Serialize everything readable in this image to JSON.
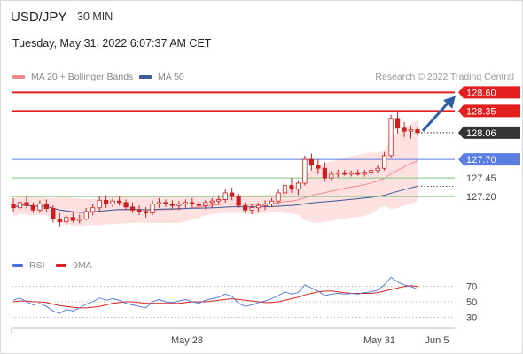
{
  "header": {
    "symbol": "USD/JPY",
    "timeframe": "30 MIN",
    "datetime": "Tuesday, May 31, 2022 6:07:37 AM CET",
    "copyright": "Research © 2022 Trading Central"
  },
  "legend": {
    "ma20_label": "MA 20 + Bollinger Bands",
    "ma50_label": "MA 50",
    "rsi_label": "RSI",
    "rsi_ma_label": "9MA"
  },
  "colors": {
    "resistance": "#e31e1e",
    "support": "#5b7fe0",
    "support_light": "#7cc57c",
    "ma20": "#f08a8a",
    "bollinger_fill": "#fde0e0",
    "ma50": "#3b5b9a",
    "candle": "#cc1f1f",
    "current_price_bg": "#333333",
    "arrow": "#2f5ea8",
    "rsi": "#4b72d6",
    "rsi_ma": "#d92323"
  },
  "chart_data": [
    {
      "type": "candlestick",
      "title": "USD/JPY 30 MIN",
      "y_range": [
        126.5,
        128.7
      ],
      "x_tick_labels": [
        "May 28",
        "May 31",
        "Jun 5"
      ],
      "current_price": 128.06,
      "levels": [
        {
          "value": 128.6,
          "label": "128.60",
          "kind": "resistance"
        },
        {
          "value": 128.35,
          "label": "128.35",
          "kind": "resistance"
        },
        {
          "value": 127.7,
          "label": "127.70",
          "kind": "pivot"
        },
        {
          "value": 127.45,
          "label": "127.45",
          "kind": "support"
        },
        {
          "value": 127.2,
          "label": "127.20",
          "kind": "support"
        }
      ],
      "ohlc": [
        [
          127.1,
          127.18,
          127.0,
          127.05
        ],
        [
          127.05,
          127.15,
          127.02,
          127.12
        ],
        [
          127.12,
          127.2,
          127.04,
          127.08
        ],
        [
          127.08,
          127.12,
          126.98,
          127.02
        ],
        [
          127.02,
          127.15,
          126.98,
          127.1
        ],
        [
          127.1,
          127.16,
          127.0,
          127.04
        ],
        [
          127.04,
          127.08,
          126.85,
          126.9
        ],
        [
          126.9,
          126.98,
          126.8,
          126.86
        ],
        [
          126.86,
          126.95,
          126.82,
          126.92
        ],
        [
          126.92,
          127.0,
          126.85,
          126.88
        ],
        [
          126.88,
          126.96,
          126.84,
          126.9
        ],
        [
          126.9,
          127.05,
          126.88,
          127.0
        ],
        [
          127.0,
          127.1,
          126.95,
          127.05
        ],
        [
          127.05,
          127.2,
          127.0,
          127.15
        ],
        [
          127.15,
          127.22,
          127.05,
          127.1
        ],
        [
          127.1,
          127.18,
          127.06,
          127.14
        ],
        [
          127.14,
          127.2,
          127.08,
          127.12
        ],
        [
          127.12,
          127.16,
          127.02,
          127.06
        ],
        [
          127.06,
          127.12,
          126.98,
          127.02
        ],
        [
          127.02,
          127.08,
          126.95,
          127.0
        ],
        [
          127.0,
          127.06,
          126.92,
          126.98
        ],
        [
          126.98,
          127.15,
          126.95,
          127.1
        ],
        [
          127.1,
          127.18,
          127.05,
          127.12
        ],
        [
          127.12,
          127.16,
          127.06,
          127.1
        ],
        [
          127.1,
          127.15,
          127.04,
          127.08
        ],
        [
          127.08,
          127.14,
          127.02,
          127.1
        ],
        [
          127.1,
          127.16,
          127.05,
          127.12
        ],
        [
          127.12,
          127.18,
          127.06,
          127.1
        ],
        [
          127.1,
          127.14,
          127.04,
          127.08
        ],
        [
          127.08,
          127.15,
          127.03,
          127.12
        ],
        [
          127.12,
          127.18,
          127.05,
          127.14
        ],
        [
          127.14,
          127.22,
          127.1,
          127.16
        ],
        [
          127.16,
          127.3,
          127.12,
          127.25
        ],
        [
          127.25,
          127.32,
          127.15,
          127.2
        ],
        [
          127.2,
          127.24,
          127.05,
          127.08
        ],
        [
          127.08,
          127.12,
          126.98,
          127.02
        ],
        [
          127.02,
          127.1,
          126.96,
          127.05
        ],
        [
          127.05,
          127.12,
          127.0,
          127.08
        ],
        [
          127.08,
          127.15,
          127.02,
          127.1
        ],
        [
          127.1,
          127.18,
          127.06,
          127.14
        ],
        [
          127.14,
          127.3,
          127.1,
          127.25
        ],
        [
          127.25,
          127.4,
          127.2,
          127.35
        ],
        [
          127.35,
          127.45,
          127.25,
          127.3
        ],
        [
          127.3,
          127.42,
          127.22,
          127.38
        ],
        [
          127.38,
          127.75,
          127.35,
          127.7
        ],
        [
          127.7,
          127.78,
          127.55,
          127.62
        ],
        [
          127.62,
          127.7,
          127.5,
          127.58
        ],
        [
          127.58,
          127.66,
          127.4,
          127.45
        ],
        [
          127.45,
          127.55,
          127.42,
          127.5
        ],
        [
          127.5,
          127.56,
          127.46,
          127.52
        ],
        [
          127.52,
          127.56,
          127.48,
          127.5
        ],
        [
          127.5,
          127.55,
          127.47,
          127.52
        ],
        [
          127.52,
          127.56,
          127.48,
          127.5
        ],
        [
          127.5,
          127.56,
          127.47,
          127.53
        ],
        [
          127.53,
          127.58,
          127.49,
          127.55
        ],
        [
          127.55,
          127.62,
          127.52,
          127.58
        ],
        [
          127.58,
          127.8,
          127.55,
          127.75
        ],
        [
          127.75,
          128.3,
          127.72,
          128.25
        ],
        [
          128.25,
          128.35,
          128.05,
          128.12
        ],
        [
          128.12,
          128.2,
          128.0,
          128.08
        ],
        [
          128.08,
          128.15,
          127.98,
          128.1
        ],
        [
          128.1,
          128.14,
          128.02,
          128.06
        ]
      ]
    },
    {
      "type": "line",
      "title": "RSI",
      "y_range": [
        20,
        80
      ],
      "y_tick_labels": [
        "70",
        "50",
        "30"
      ],
      "series": [
        {
          "name": "RSI",
          "values": [
            52,
            55,
            50,
            46,
            48,
            44,
            38,
            35,
            40,
            38,
            42,
            47,
            50,
            55,
            52,
            54,
            52,
            48,
            46,
            44,
            42,
            50,
            53,
            50,
            49,
            51,
            53,
            50,
            48,
            52,
            54,
            56,
            60,
            57,
            48,
            44,
            46,
            49,
            51,
            54,
            58,
            63,
            60,
            62,
            72,
            68,
            64,
            58,
            60,
            61,
            60,
            61,
            60,
            62,
            63,
            65,
            72,
            82,
            76,
            72,
            70,
            66
          ]
        },
        {
          "name": "9MA",
          "values": [
            50,
            51,
            51,
            50,
            50,
            49,
            47,
            45,
            44,
            43,
            42,
            42,
            43,
            44,
            46,
            48,
            49,
            50,
            50,
            49,
            48,
            48,
            48,
            48,
            48,
            48,
            49,
            50,
            50,
            50,
            51,
            52,
            53,
            54,
            53,
            52,
            51,
            50,
            49,
            49,
            50,
            52,
            54,
            56,
            59,
            61,
            63,
            64,
            64,
            63,
            62,
            61,
            61,
            61,
            61,
            62,
            64,
            66,
            68,
            70,
            71,
            70
          ]
        }
      ]
    }
  ]
}
